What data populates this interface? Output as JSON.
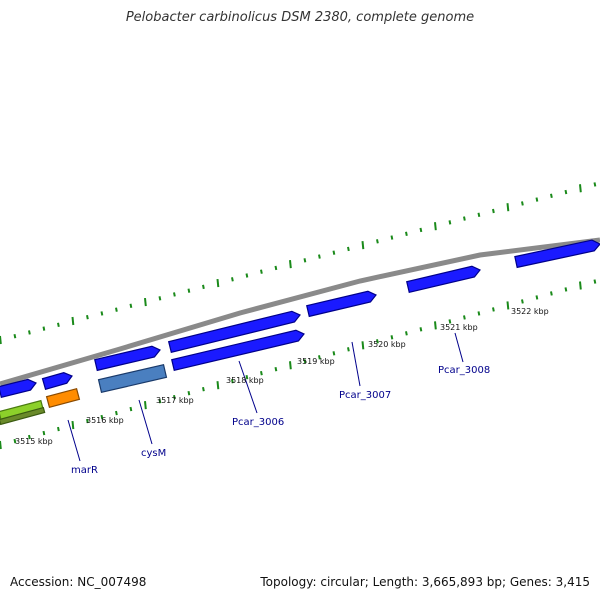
{
  "title": "Pelobacter carbinolicus DSM 2380, complete genome",
  "accession": "Accession: NC_007498",
  "topology": "Topology: circular; Length: 3,665,893 bp; Genes: 3,415",
  "colors": {
    "cds_blue": "#1a1aff",
    "cds_steel": "#4a7fc0",
    "cds_orange": "#ff8c00",
    "cds_green": "#8cd02a",
    "backbone": "#8a8a8a",
    "ticks": "#1a8a1a",
    "label_blue": "#00008b"
  },
  "kbp_labels": [
    "3515 kbp",
    "3516 kbp",
    "3517 kbp",
    "3518 kbp",
    "3519 kbp",
    "3520 kbp",
    "3521 kbp",
    "3522 kbp"
  ],
  "gene_labels": [
    "marR",
    "cysM",
    "Pcar_3006",
    "Pcar_3007",
    "Pcar_3008"
  ]
}
